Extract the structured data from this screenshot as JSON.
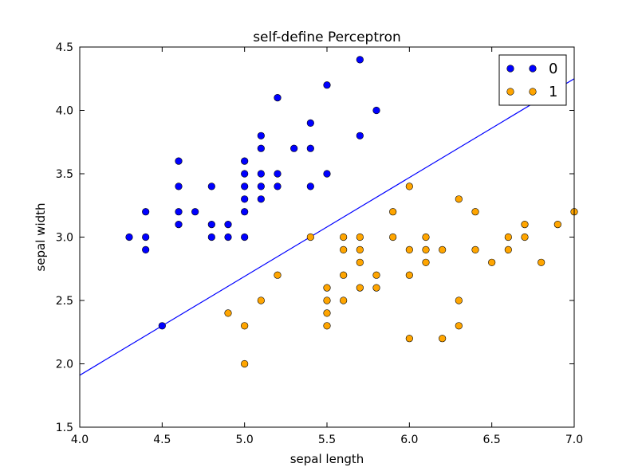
{
  "chart_data": {
    "type": "scatter",
    "title": "self-define Perceptron",
    "xlabel": "sepal length",
    "ylabel": "sepal width",
    "xlim": [
      4.0,
      7.0
    ],
    "ylim": [
      1.5,
      4.5
    ],
    "xticks": [
      "4.0",
      "4.5",
      "5.0",
      "5.5",
      "6.0",
      "6.5",
      "7.0"
    ],
    "yticks": [
      "1.5",
      "2.0",
      "2.5",
      "3.0",
      "3.5",
      "4.0",
      "4.5"
    ],
    "grid": false,
    "legend_position": "top-right",
    "series": [
      {
        "name": "0",
        "color": "#0000ff",
        "points": [
          [
            4.3,
            3.0
          ],
          [
            4.4,
            2.9
          ],
          [
            4.4,
            3.0
          ],
          [
            4.4,
            3.2
          ],
          [
            4.5,
            2.3
          ],
          [
            4.6,
            3.1
          ],
          [
            4.6,
            3.2
          ],
          [
            4.6,
            3.4
          ],
          [
            4.6,
            3.6
          ],
          [
            4.7,
            3.2
          ],
          [
            4.8,
            3.0
          ],
          [
            4.8,
            3.1
          ],
          [
            4.8,
            3.4
          ],
          [
            4.9,
            3.0
          ],
          [
            4.9,
            3.1
          ],
          [
            5.0,
            3.0
          ],
          [
            5.0,
            3.2
          ],
          [
            5.0,
            3.3
          ],
          [
            5.0,
            3.4
          ],
          [
            5.0,
            3.5
          ],
          [
            5.0,
            3.6
          ],
          [
            5.1,
            3.3
          ],
          [
            5.1,
            3.4
          ],
          [
            5.1,
            3.5
          ],
          [
            5.1,
            3.7
          ],
          [
            5.1,
            3.8
          ],
          [
            5.2,
            3.4
          ],
          [
            5.2,
            3.5
          ],
          [
            5.2,
            4.1
          ],
          [
            5.3,
            3.7
          ],
          [
            5.4,
            3.4
          ],
          [
            5.4,
            3.7
          ],
          [
            5.4,
            3.9
          ],
          [
            5.5,
            3.5
          ],
          [
            5.5,
            4.2
          ],
          [
            5.7,
            3.8
          ],
          [
            5.7,
            4.4
          ],
          [
            5.8,
            4.0
          ]
        ]
      },
      {
        "name": "1",
        "color": "#ffa500",
        "points": [
          [
            4.9,
            2.4
          ],
          [
            5.0,
            2.0
          ],
          [
            5.0,
            2.3
          ],
          [
            5.1,
            2.5
          ],
          [
            5.2,
            2.7
          ],
          [
            5.4,
            3.0
          ],
          [
            5.5,
            2.3
          ],
          [
            5.5,
            2.4
          ],
          [
            5.5,
            2.5
          ],
          [
            5.5,
            2.6
          ],
          [
            5.6,
            2.5
          ],
          [
            5.6,
            2.7
          ],
          [
            5.6,
            2.9
          ],
          [
            5.6,
            3.0
          ],
          [
            5.7,
            2.6
          ],
          [
            5.7,
            2.8
          ],
          [
            5.7,
            2.9
          ],
          [
            5.7,
            3.0
          ],
          [
            5.8,
            2.6
          ],
          [
            5.8,
            2.7
          ],
          [
            5.9,
            3.0
          ],
          [
            5.9,
            3.2
          ],
          [
            6.0,
            2.2
          ],
          [
            6.0,
            2.7
          ],
          [
            6.0,
            2.9
          ],
          [
            6.0,
            3.4
          ],
          [
            6.1,
            2.8
          ],
          [
            6.1,
            2.9
          ],
          [
            6.1,
            3.0
          ],
          [
            6.2,
            2.2
          ],
          [
            6.2,
            2.9
          ],
          [
            6.3,
            2.3
          ],
          [
            6.3,
            2.5
          ],
          [
            6.3,
            3.3
          ],
          [
            6.4,
            2.9
          ],
          [
            6.4,
            3.2
          ],
          [
            6.5,
            2.8
          ],
          [
            6.6,
            2.9
          ],
          [
            6.6,
            3.0
          ],
          [
            6.7,
            3.0
          ],
          [
            6.7,
            3.1
          ],
          [
            6.8,
            2.8
          ],
          [
            6.9,
            3.1
          ],
          [
            7.0,
            3.2
          ]
        ]
      }
    ],
    "decision_line": {
      "color": "#0000ff",
      "points": [
        [
          4.0,
          1.91
        ],
        [
          7.0,
          4.25
        ]
      ]
    }
  }
}
